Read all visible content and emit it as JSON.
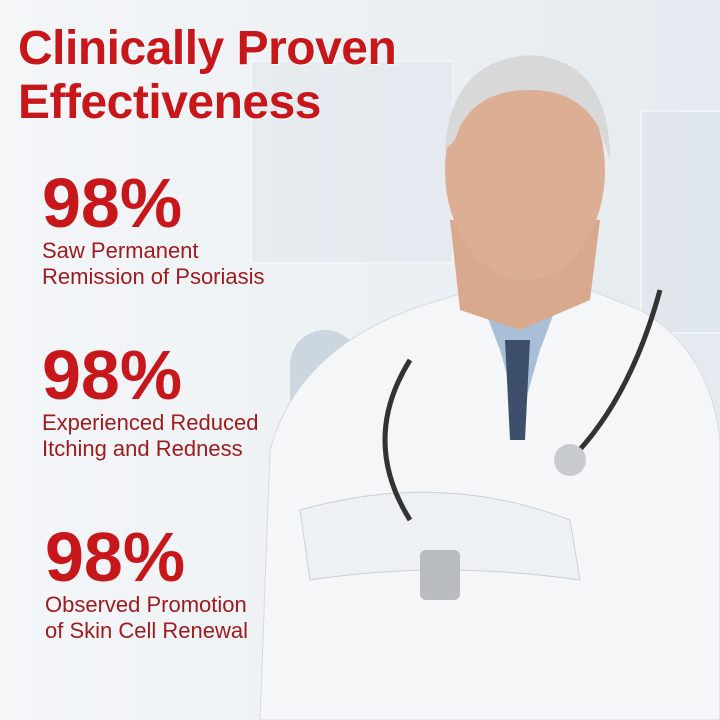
{
  "title": [
    "Clinically Proven",
    "Effectiveness"
  ],
  "stats": [
    {
      "value": "98%",
      "lines": [
        "Saw Permanent",
        "Remission of Psoriasis"
      ]
    },
    {
      "value": "98%",
      "lines": [
        "Experienced Reduced",
        "Itching and Redness"
      ]
    },
    {
      "value": "98%",
      "lines": [
        "Observed Promotion",
        "of Skin Cell Renewal"
      ]
    }
  ],
  "colors": {
    "accent": "#c8171b",
    "text": "#9e1a1d"
  }
}
